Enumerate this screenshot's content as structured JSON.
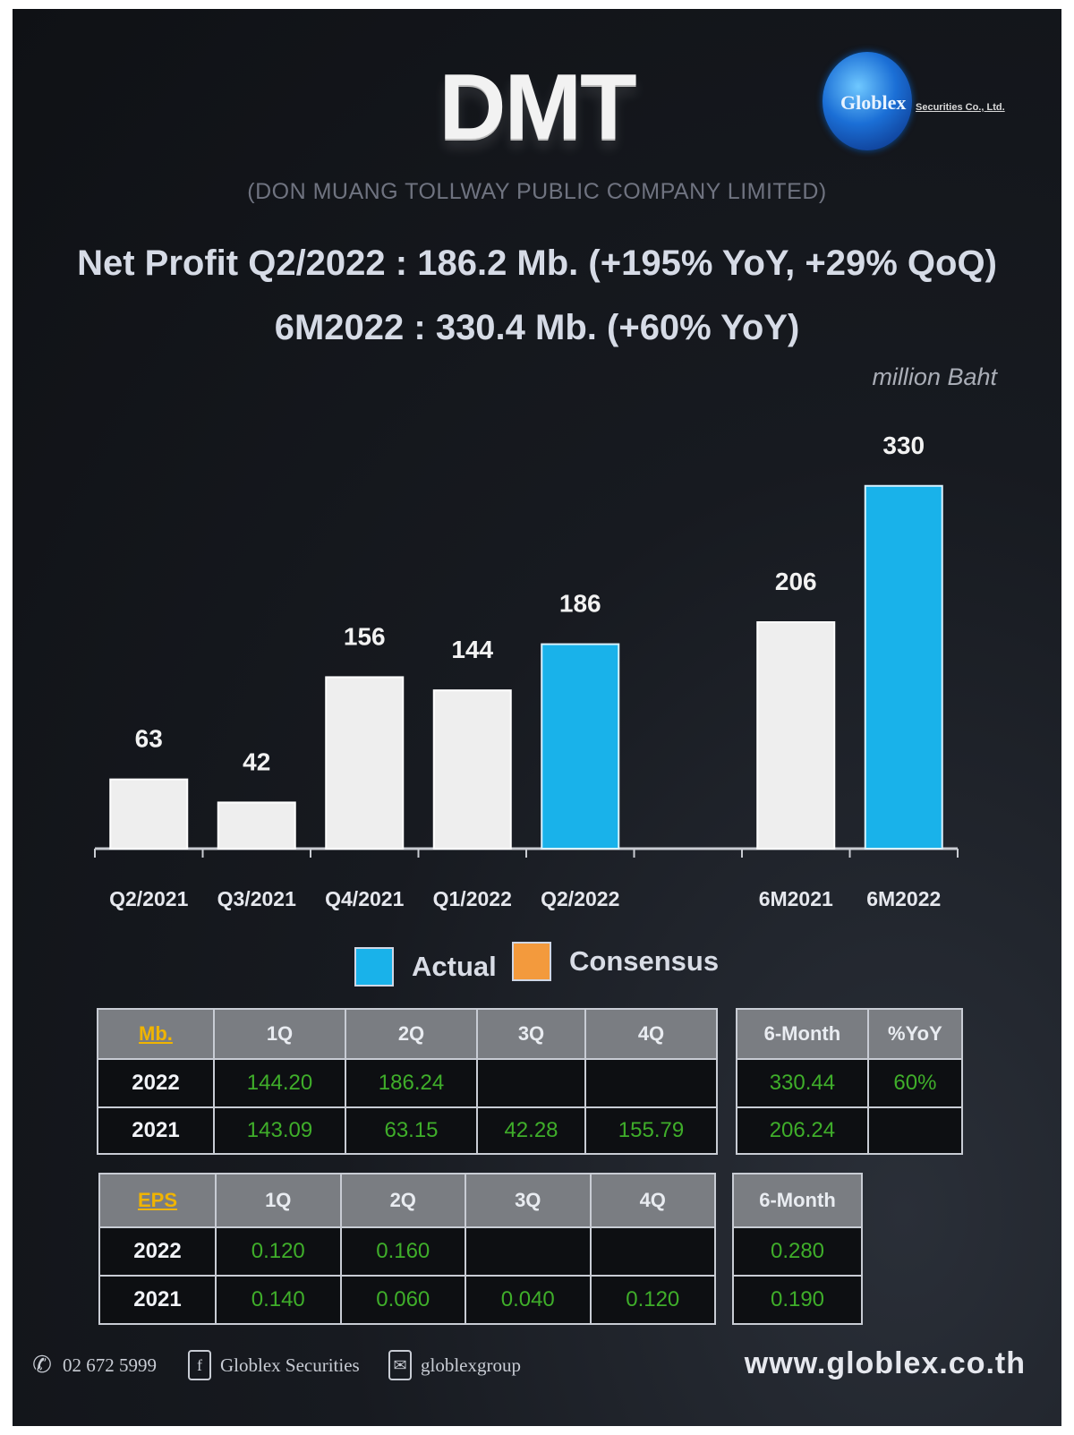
{
  "header": {
    "ticker": "DMT",
    "company": "(DON MUANG TOLLWAY PUBLIC COMPANY LIMITED)",
    "logo_text": "Globlex",
    "logo_tagline": "Securities Co., Ltd.",
    "headline_1": "Net Profit  Q2/2022 : 186.2 Mb. (+195% YoY, +29% QoQ)",
    "headline_2": "6M2022 : 330.4 Mb. (+60% YoY)",
    "units": "million Baht"
  },
  "chart_data": {
    "type": "bar",
    "categories": [
      "Q2/2021",
      "Q3/2021",
      "Q4/2021",
      "Q1/2022",
      "Q2/2022",
      "",
      "6M2021",
      "6M2022"
    ],
    "values": [
      63,
      42,
      156,
      144,
      186,
      null,
      206,
      330
    ],
    "highlight": [
      false,
      false,
      false,
      false,
      true,
      false,
      false,
      true
    ],
    "ylabel": "million Baht",
    "ylim": [
      0,
      330
    ],
    "grid": false,
    "legend_position": "bottom",
    "colors": {
      "actual": "#19b2ea",
      "consensus": "#f39a3d",
      "default": "#eeeeee"
    }
  },
  "legend": [
    {
      "label": "Actual",
      "color": "#19b2ea"
    },
    {
      "label": "Consensus",
      "color": "#f39a3d"
    }
  ],
  "profit_table": {
    "corner": "Mb.",
    "columns": [
      "1Q",
      "2Q",
      "3Q",
      "4Q"
    ],
    "rows": [
      {
        "year": "2022",
        "values": [
          "144.20",
          "186.24",
          "",
          ""
        ]
      },
      {
        "year": "2021",
        "values": [
          "143.09",
          "63.15",
          "42.28",
          "155.79"
        ]
      }
    ]
  },
  "profit_summary": {
    "columns": [
      "6-Month",
      "%YoY"
    ],
    "rows": [
      {
        "values": [
          "330.44",
          "60%"
        ]
      },
      {
        "values": [
          "206.24",
          ""
        ]
      }
    ]
  },
  "eps_table": {
    "corner": "EPS",
    "columns": [
      "1Q",
      "2Q",
      "3Q",
      "4Q"
    ],
    "rows": [
      {
        "year": "2022",
        "values": [
          "0.120",
          "0.160",
          "",
          ""
        ]
      },
      {
        "year": "2021",
        "values": [
          "0.140",
          "0.060",
          "0.040",
          "0.120"
        ]
      }
    ]
  },
  "eps_summary": {
    "columns": [
      "6-Month"
    ],
    "rows": [
      {
        "values": [
          "0.280"
        ]
      },
      {
        "values": [
          "0.190"
        ]
      }
    ]
  },
  "footer": {
    "phone": "02 672 5999",
    "facebook": "Globlex Securities",
    "line": "globlexgroup",
    "website": "www.globlex.co.th"
  }
}
